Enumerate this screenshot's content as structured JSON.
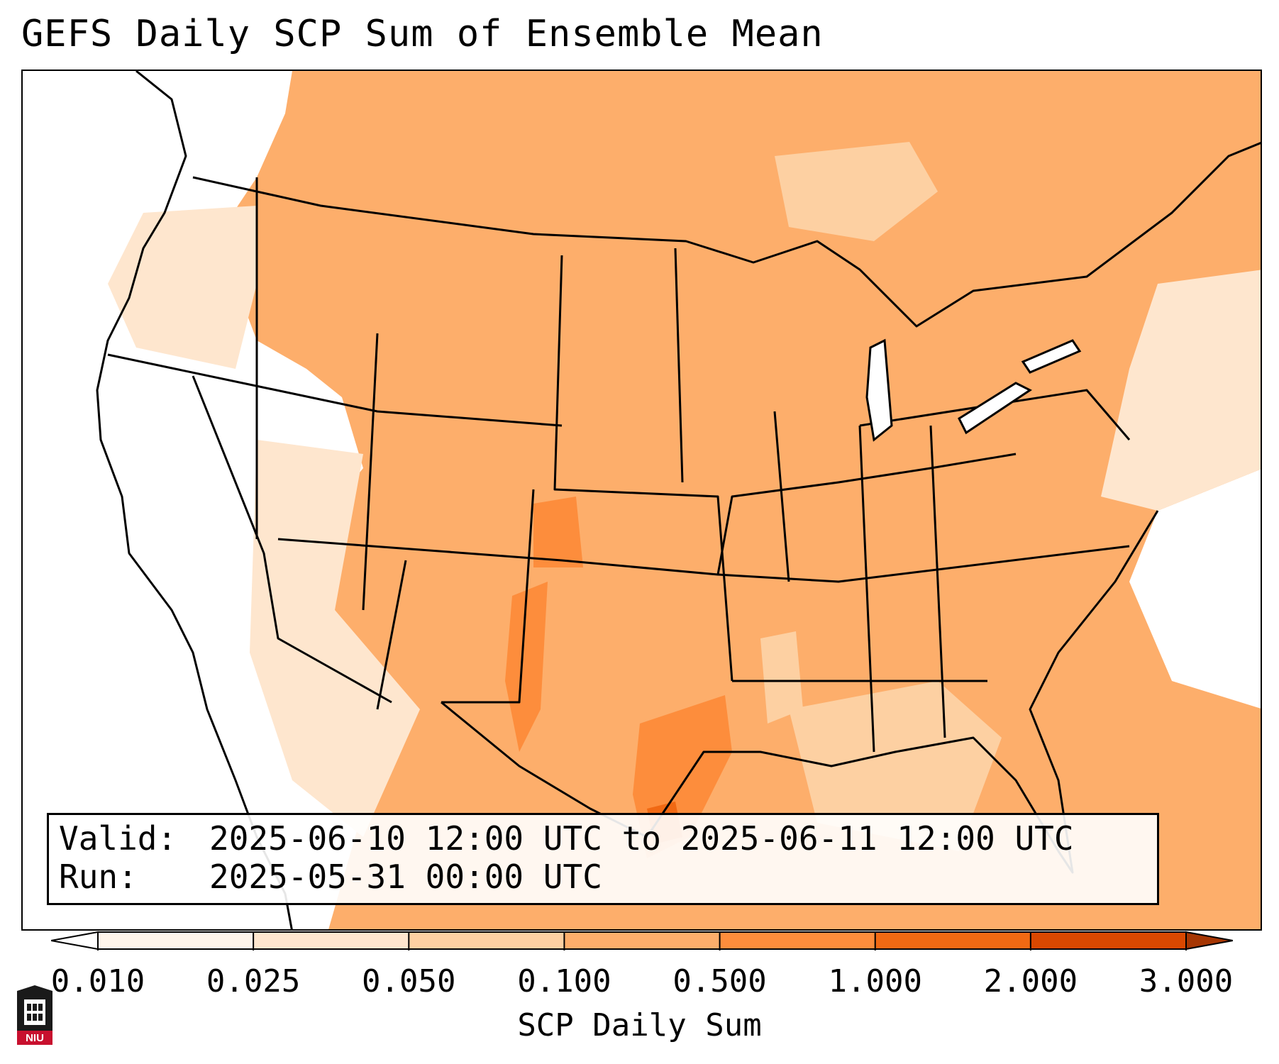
{
  "title": "GEFS Daily SCP Sum of Ensemble Mean",
  "info": {
    "valid_label": "Valid:",
    "valid_value": "2025-06-10 12:00 UTC to 2025-06-11 12:00 UTC",
    "run_label": "Run:",
    "run_value": "2025-05-31 00:00 UTC"
  },
  "colorbar": {
    "label": "SCP Daily Sum",
    "ticks": [
      "0.010",
      "0.025",
      "0.050",
      "0.100",
      "0.500",
      "1.000",
      "2.000",
      "3.000"
    ],
    "colors": [
      "#fff5eb",
      "#fee6ce",
      "#fdd0a2",
      "#fdae6b",
      "#fd8d3c",
      "#f16913",
      "#d94801"
    ],
    "under_color": "#ffffff",
    "over_color": "#a63603"
  },
  "logo": {
    "text": "NIU",
    "color": "#c8102e"
  },
  "colors": {
    "background": "#ffffff",
    "border": "#000000",
    "state_lines": "#000000",
    "low_shade": "#fee6ce",
    "main_shade": "#fdae6b",
    "high_shade": "#fd8d3c",
    "peak_shade": "#f16913"
  }
}
